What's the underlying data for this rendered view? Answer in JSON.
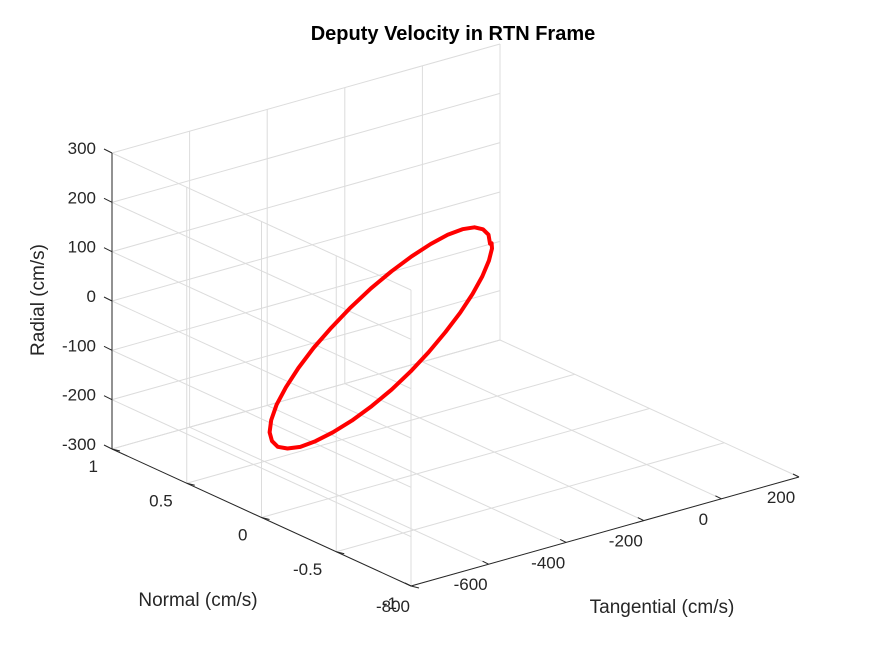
{
  "chart_data": {
    "type": "line3d",
    "title": "Deputy Velocity in RTN Frame",
    "xlabel": "Tangential (cm/s)",
    "ylabel": "Normal (cm/s)",
    "zlabel": "Radial (cm/s)",
    "xlim": [
      -800,
      200
    ],
    "ylim": [
      -1,
      1
    ],
    "zlim": [
      -300,
      300
    ],
    "xticks": [
      "-800",
      "-600",
      "-400",
      "-200",
      "0",
      "200"
    ],
    "yticks": [
      "-1",
      "-0.5",
      "0",
      "0.5",
      "1"
    ],
    "zticks": [
      "-300",
      "-200",
      "-100",
      "0",
      "100",
      "200",
      "300"
    ],
    "grid": true,
    "series": [
      {
        "color": "#ff0000",
        "x": [
          -211,
          -215,
          -229,
          -251,
          -282,
          -320,
          -364,
          -413,
          -465,
          -518,
          -570,
          -620,
          -666,
          -705,
          -737,
          -761,
          -775,
          -779,
          -773,
          -758,
          -733,
          -700,
          -661,
          -616,
          -567,
          -516,
          -465,
          -416,
          -369,
          -326,
          -288,
          -256,
          -231,
          -214,
          -206,
          -207,
          -211
        ],
        "y": [
          0,
          0,
          0,
          0,
          0,
          0,
          0,
          0,
          0,
          0,
          0,
          0,
          0,
          0,
          0,
          0,
          0,
          0,
          0,
          0,
          0,
          0,
          0,
          0,
          0,
          0,
          0,
          0,
          0,
          0,
          0,
          0,
          0,
          0,
          0,
          0,
          0
        ],
        "z": [
          125,
          144,
          158,
          167,
          170,
          167,
          158,
          144,
          125,
          102,
          75,
          45,
          14,
          -18,
          -50,
          -80,
          -108,
          -132,
          -151,
          -166,
          -175,
          -179,
          -176,
          -168,
          -155,
          -137,
          -115,
          -89,
          -60,
          -29,
          2,
          33,
          63,
          91,
          114,
          125,
          125
        ]
      }
    ]
  }
}
